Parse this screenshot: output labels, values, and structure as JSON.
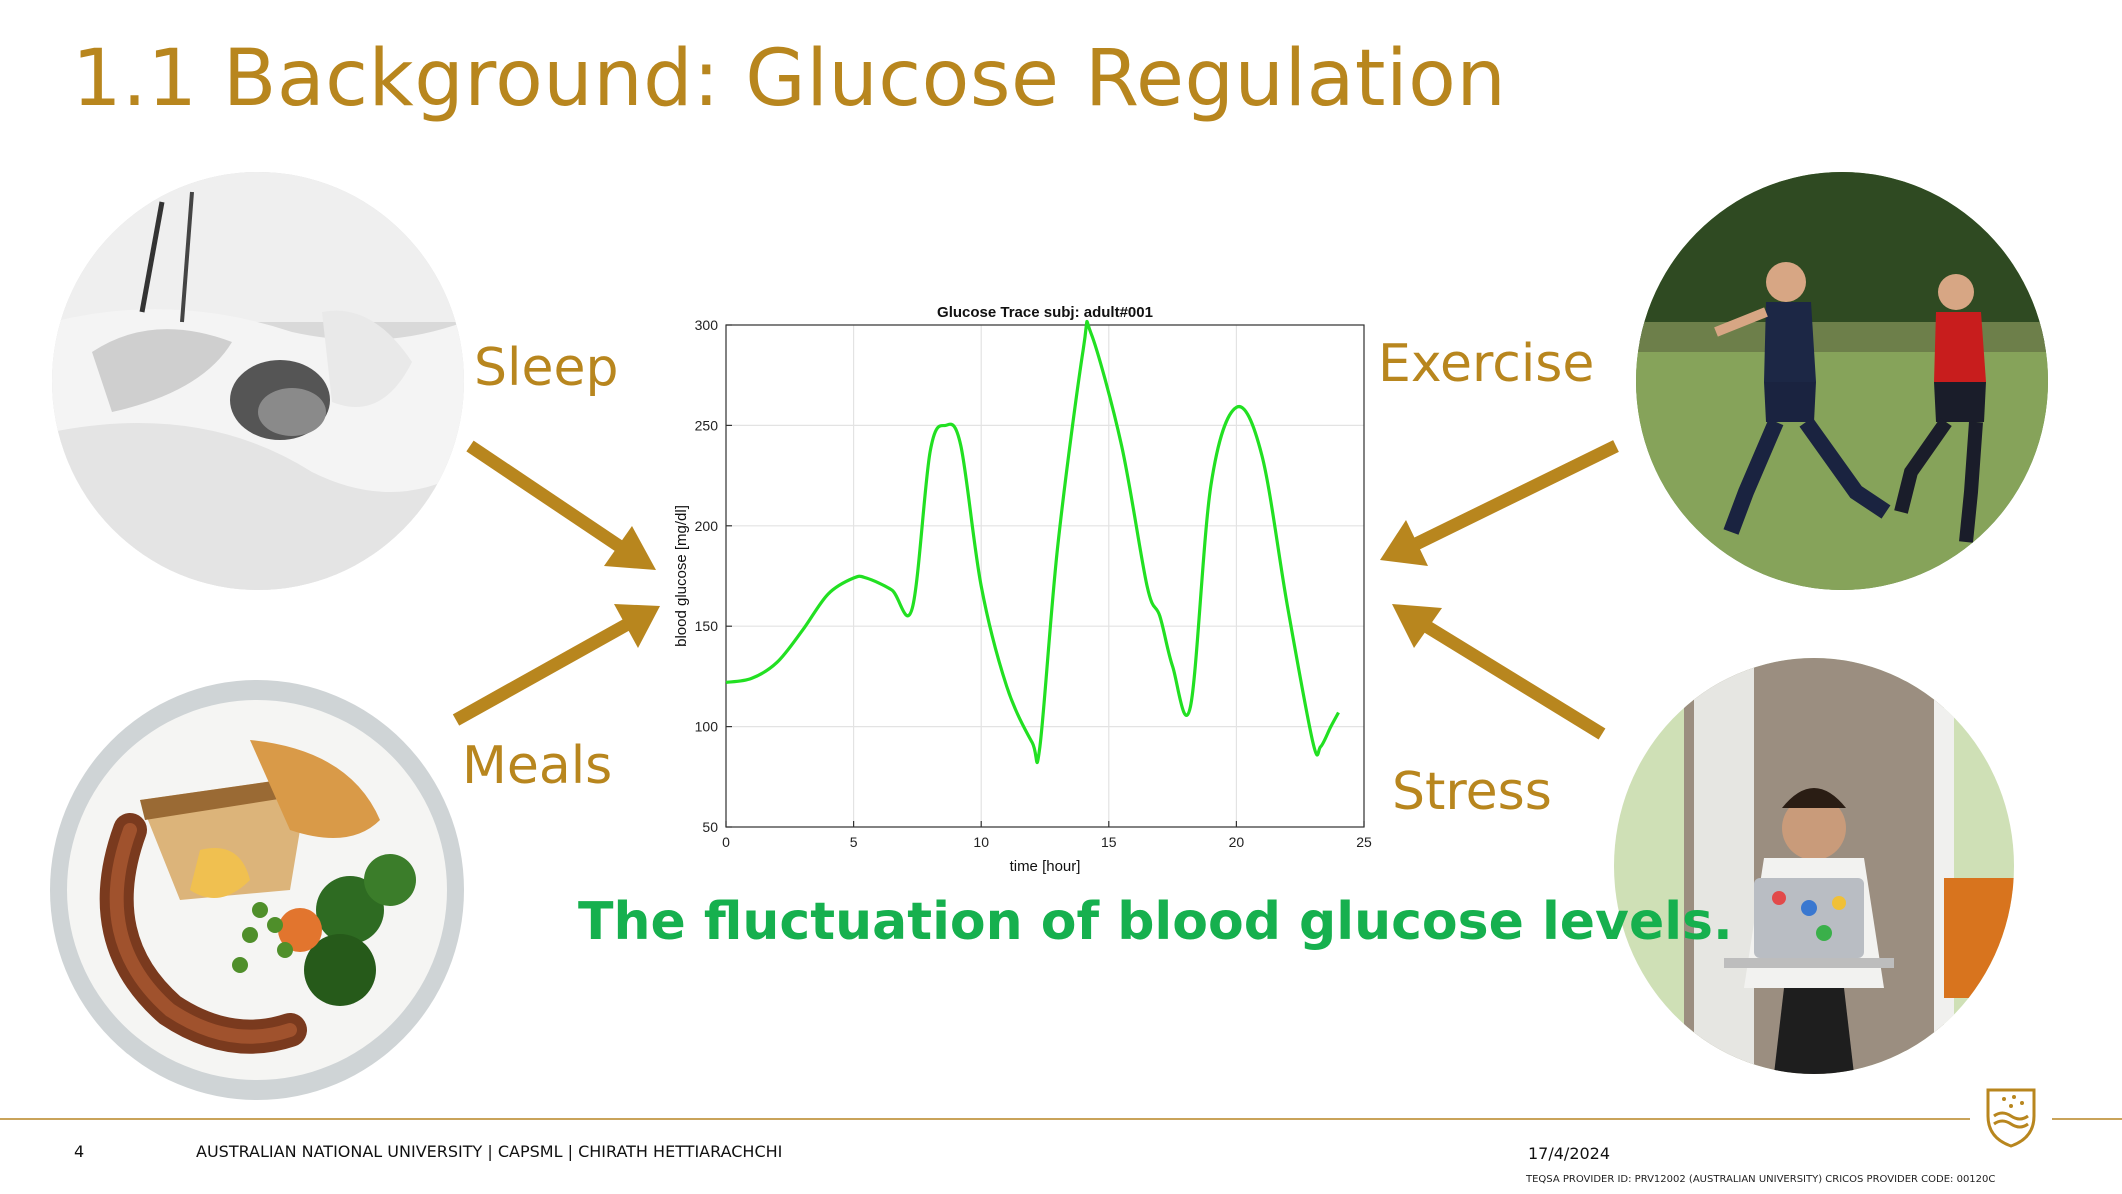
{
  "slide": {
    "title": "1.1  Background: Glucose Regulation",
    "labels": {
      "sleep": "Sleep",
      "meals": "Meals",
      "exercise": "Exercise",
      "stress": "Stress"
    },
    "caption": "The fluctuation of blood glucose levels."
  },
  "chart_data": {
    "type": "line",
    "title": "Glucose Trace subj: adult#001",
    "xlabel": "time [hour]",
    "ylabel": "blood glucose [mg/dl]",
    "xlim": [
      0,
      25
    ],
    "ylim": [
      50,
      300
    ],
    "xticks": [
      0,
      5,
      10,
      15,
      20,
      25
    ],
    "yticks": [
      50,
      100,
      150,
      200,
      250,
      300
    ],
    "grid": true,
    "series": [
      {
        "name": "glucose",
        "color": "#22e022",
        "x": [
          0,
          1,
          2,
          3,
          4,
          5,
          5.5,
          6.5,
          7.3,
          8.0,
          8.6,
          9.2,
          10.0,
          11.0,
          12.0,
          12.3,
          13.0,
          14.0,
          14.3,
          15.5,
          16.5,
          17.0,
          17.5,
          18.2,
          19.0,
          20.0,
          21.0,
          22.0,
          23.0,
          23.3,
          23.7,
          24.0
        ],
        "values": [
          122,
          124,
          132,
          148,
          166,
          174,
          174,
          168,
          159,
          237,
          250,
          240,
          170,
          120,
          92,
          90,
          190,
          288,
          296,
          240,
          170,
          155,
          130,
          110,
          220,
          259,
          235,
          160,
          92,
          90,
          100,
          107
        ]
      }
    ]
  },
  "footer": {
    "page_number": "4",
    "affiliation": "AUSTRALIAN NATIONAL UNIVERSITY |   CAPSML  |  CHIRATH HETTIARACHCHI",
    "date": "17/4/2024",
    "provider": "TEQSA PROVIDER ID: PRV12002 (AUSTRALIAN UNIVERSITY) CRICOS PROVIDER CODE: 00120C"
  },
  "colors": {
    "accent": "#b8861e",
    "caption": "#16b04e",
    "trace": "#22e022"
  }
}
